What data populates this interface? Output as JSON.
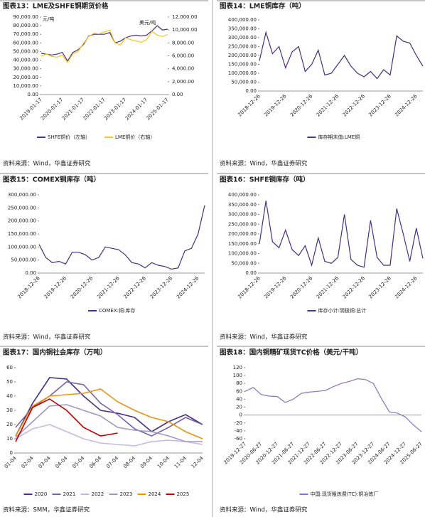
{
  "chart_data": [
    {
      "type": "line",
      "title": "图表13：LME及SHFE铜期货价格",
      "source": "资料来源：Wind，华鑫证券研究",
      "annotations": [
        "元/吨",
        "美元/吨"
      ],
      "categories": [
        "2019-01-17",
        null,
        null,
        null,
        "2020-01-17",
        null,
        null,
        null,
        "2021-01-17",
        null,
        null,
        null,
        "2022-01-17",
        null,
        null,
        null,
        "2023-01-17",
        null,
        null,
        null,
        "2024-01-17",
        null,
        null,
        null,
        "2025-01-17"
      ],
      "series": [
        {
          "name": "SHFE铜价（左轴）",
          "color": "#4b2d83",
          "values": [
            48000,
            47000,
            46000,
            47000,
            49000,
            39000,
            49000,
            52000,
            58000,
            68000,
            70000,
            70000,
            70000,
            72000,
            60000,
            62000,
            66000,
            68000,
            69000,
            68000,
            69000,
            74000,
            80000,
            75000,
            76000
          ]
        },
        {
          "name": "LME铜价（右轴）",
          "color": "#f5c518",
          "axis": "y2",
          "values": [
            6000,
            6300,
            5900,
            5800,
            6100,
            5000,
            6300,
            6700,
            7900,
            9000,
            9500,
            9400,
            9700,
            10000,
            8000,
            7700,
            8800,
            8500,
            8300,
            8100,
            8500,
            9800,
            9200,
            9000,
            9300
          ]
        }
      ],
      "ylim": [
        0,
        90000
      ],
      "yticks": [
        {
          "value": 0,
          "label": "0.00"
        },
        {
          "value": 10000,
          "label": "10,000.00"
        },
        {
          "value": 20000,
          "label": "20,000.00"
        },
        {
          "value": 30000,
          "label": "30,000.00"
        },
        {
          "value": 40000,
          "label": "40,000.00"
        },
        {
          "value": 50000,
          "label": "50,000.00"
        },
        {
          "value": 60000,
          "label": "60,000.00"
        },
        {
          "value": 70000,
          "label": "70,000.00"
        },
        {
          "value": 80000,
          "label": "80,000.00"
        },
        {
          "value": 90000,
          "label": "90,000.00"
        }
      ],
      "y2lim": [
        0,
        12000
      ],
      "y2ticks": [
        {
          "value": 0,
          "label": "0.00"
        },
        {
          "value": 2000,
          "label": "2,000.00"
        },
        {
          "value": 4000,
          "label": "4,000.00"
        },
        {
          "value": 6000,
          "label": "6,000.00"
        },
        {
          "value": 8000,
          "label": "8,000.00"
        },
        {
          "value": 10000,
          "label": "10,000.00"
        },
        {
          "value": 12000,
          "label": "12,000.00"
        }
      ]
    },
    {
      "type": "line",
      "title": "图表14：LME铜库存（吨）",
      "source": "资料来源：Wind，华鑫证券研究",
      "categories": [
        "2018-12-26",
        null,
        null,
        null,
        "2019-12-26",
        null,
        null,
        null,
        "2020-12-26",
        null,
        null,
        null,
        "2021-12-26",
        null,
        null,
        null,
        "2022-12-26",
        null,
        null,
        null,
        "2023-12-26",
        null,
        null,
        null,
        "2024-12-26",
        null
      ],
      "series": [
        {
          "name": "库存期末值:LME铜",
          "color": "#4b2d83",
          "values": [
            170000,
            330000,
            210000,
            250000,
            130000,
            220000,
            250000,
            110000,
            150000,
            230000,
            90000,
            100000,
            150000,
            200000,
            140000,
            100000,
            80000,
            110000,
            70000,
            120000,
            90000,
            310000,
            280000,
            270000,
            200000,
            140000
          ]
        }
      ],
      "ylim": [
        0,
        400000
      ],
      "yticks": [
        {
          "value": 0,
          "label": "0.00"
        },
        {
          "value": 50000,
          "label": "50,000.00"
        },
        {
          "value": 100000,
          "label": "100,000.00"
        },
        {
          "value": 150000,
          "label": "150,000.00"
        },
        {
          "value": 200000,
          "label": "200,000.00"
        },
        {
          "value": 250000,
          "label": "250,000.00"
        },
        {
          "value": 300000,
          "label": "300,000.00"
        },
        {
          "value": 350000,
          "label": "350,000.00"
        },
        {
          "value": 400000,
          "label": "400,000.00"
        }
      ]
    },
    {
      "type": "line",
      "title": "图表15：COMEX铜库存（吨）",
      "source": "资料来源：Wind，华鑫证券研究",
      "categories": [
        "2018-12-26",
        null,
        null,
        null,
        "2019-12-26",
        null,
        null,
        null,
        "2020-12-26",
        null,
        null,
        null,
        "2021-12-26",
        null,
        null,
        null,
        "2022-12-26",
        null,
        null,
        null,
        "2023-12-26",
        null,
        null,
        null,
        "2024-12-26",
        null
      ],
      "series": [
        {
          "name": "COMEX:铜:库存",
          "color": "#4b2d83",
          "values": [
            110000,
            60000,
            40000,
            45000,
            35000,
            80000,
            80000,
            70000,
            50000,
            60000,
            100000,
            95000,
            90000,
            70000,
            40000,
            35000,
            20000,
            40000,
            30000,
            25000,
            15000,
            20000,
            85000,
            95000,
            150000,
            260000
          ]
        }
      ],
      "ylim": [
        0,
        300000
      ],
      "yticks": [
        {
          "value": 0,
          "label": "0.00"
        },
        {
          "value": 50000,
          "label": "50,000.00"
        },
        {
          "value": 100000,
          "label": "100,000.00"
        },
        {
          "value": 150000,
          "label": "150,000.00"
        },
        {
          "value": 200000,
          "label": "200,000.00"
        },
        {
          "value": 250000,
          "label": "250,000.00"
        },
        {
          "value": 300000,
          "label": "300,000.00"
        }
      ]
    },
    {
      "type": "line",
      "title": "图表16：SHFE铜库存（吨）",
      "source": "资料来源：Wind，华鑫证券研究",
      "categories": [
        "2018-12-26",
        null,
        null,
        null,
        "2019-12-26",
        null,
        null,
        null,
        "2020-12-26",
        null,
        null,
        null,
        "2021-12-26",
        null,
        null,
        null,
        "2022-12-26",
        null,
        null,
        null,
        "2023-12-26",
        null,
        null,
        null,
        "2024-12-26",
        null
      ],
      "series": [
        {
          "name": "库存小计:阴极铜:总计",
          "color": "#4b2d83",
          "values": [
            150000,
            370000,
            160000,
            130000,
            220000,
            120000,
            90000,
            140000,
            40000,
            180000,
            60000,
            50000,
            80000,
            300000,
            70000,
            40000,
            30000,
            270000,
            80000,
            40000,
            40000,
            330000,
            200000,
            60000,
            230000,
            75000
          ]
        }
      ],
      "ylim": [
        0,
        400000
      ],
      "yticks": [
        {
          "value": 0,
          "label": "0.00"
        },
        {
          "value": 50000,
          "label": "50,000.00"
        },
        {
          "value": 100000,
          "label": "100,000.00"
        },
        {
          "value": 150000,
          "label": "150,000.00"
        },
        {
          "value": 200000,
          "label": "200,000.00"
        },
        {
          "value": 250000,
          "label": "250,000.00"
        },
        {
          "value": 300000,
          "label": "300,000.00"
        },
        {
          "value": 350000,
          "label": "350,000.00"
        },
        {
          "value": 400000,
          "label": "400,000.00"
        }
      ]
    },
    {
      "type": "line",
      "title": "图表17：国内铜社会库存（万吨）",
      "source": "资料来源：SMM，华鑫证券研究",
      "categories": [
        "01-04",
        "02-04",
        "03-04",
        "04-04",
        "05-04",
        "06-04",
        "07-04",
        "08-04",
        "09-04",
        "10-04",
        "11-04",
        "12-04"
      ],
      "series": [
        {
          "name": "2020",
          "color": "#4b2d83",
          "values": [
            12,
            35,
            53,
            52,
            40,
            30,
            28,
            25,
            15,
            22,
            27,
            20
          ]
        },
        {
          "name": "2021",
          "color": "#7a62ad",
          "values": [
            18,
            32,
            40,
            50,
            48,
            35,
            27,
            17,
            12,
            18,
            25,
            20
          ]
        },
        {
          "name": "2022",
          "color": "#c8b8e0",
          "values": [
            10,
            17,
            20,
            15,
            10,
            7,
            6,
            5,
            8,
            9,
            8,
            6
          ]
        },
        {
          "name": "2023",
          "color": "#a593c2",
          "values": [
            11,
            22,
            33,
            34,
            30,
            26,
            18,
            16,
            15,
            12,
            8,
            8
          ]
        },
        {
          "name": "2024",
          "color": "#e8940f",
          "values": [
            12,
            33,
            40,
            41,
            42,
            45,
            36,
            30,
            25,
            22,
            15,
            10
          ]
        },
        {
          "name": "2025",
          "color": "#c00000",
          "values": [
            8,
            32,
            38,
            30,
            18,
            12,
            14,
            null,
            null,
            null,
            null,
            null
          ]
        }
      ],
      "ylim": [
        0,
        60
      ],
      "yticks": [
        0,
        10,
        20,
        30,
        40,
        50,
        60
      ]
    },
    {
      "type": "line",
      "title": "图表18：国内铜精矿现货TC价格（美元/干吨）",
      "source": "资料来源：Wind，华鑫证券研究",
      "categories": [
        "2019-12-27",
        null,
        "2020-06-27",
        null,
        "2020-12-27",
        null,
        "2021-06-27",
        null,
        "2021-12-27",
        null,
        "2022-06-27",
        null,
        "2022-12-27",
        null,
        "2023-06-27",
        null,
        "2023-12-27",
        null,
        "2024-06-27",
        null,
        "2024-12-27",
        null,
        "2025-06-27"
      ],
      "series": [
        {
          "name": "中国:现货粗炼费(TC):铜冶炼厂",
          "color": "#8e6fc1",
          "values": [
            60,
            70,
            52,
            48,
            47,
            32,
            40,
            55,
            58,
            60,
            62,
            72,
            80,
            85,
            92,
            90,
            80,
            42,
            8,
            5,
            -5,
            -25,
            -42
          ]
        }
      ],
      "ylim": [
        -60,
        120
      ],
      "yticks": [
        -60,
        -40,
        -20,
        0,
        20,
        40,
        60,
        80,
        100,
        120
      ]
    }
  ]
}
